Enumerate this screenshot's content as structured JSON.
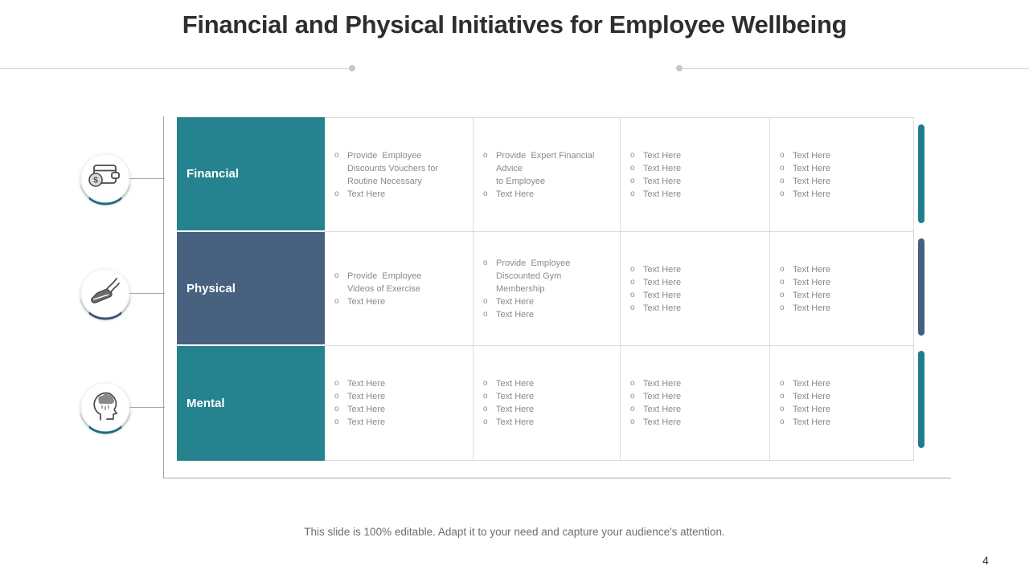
{
  "slide": {
    "title": "Financial and Physical Initiatives for Employee Wellbeing",
    "footer": "This slide is 100% editable. Adapt it to your need and capture your audience's attention.",
    "page_number": "4"
  },
  "colors": {
    "teal_header": "#24838F",
    "navy_header": "#48617F",
    "teal_bar": "#1F7E8C",
    "navy_bar": "#44607E"
  },
  "bullet_glyph": "o",
  "table": {
    "rows": [
      {
        "label": "Financial",
        "icon": "wallet-dollar-icon",
        "header_color": "#24838F",
        "accent_color": "#1F7E8C",
        "cells": [
          {
            "bullets": [
              [
                "Provide  Employee",
                "Discounts Vouchers for",
                "Routine Necessary"
              ],
              [
                "Text Here"
              ]
            ]
          },
          {
            "bullets": [
              [
                "Provide  Expert Financial",
                "Advice",
                "to Employee"
              ],
              [
                "Text Here"
              ]
            ]
          },
          {
            "bullets": [
              [
                "Text Here"
              ],
              [
                "Text Here"
              ],
              [
                "Text Here"
              ],
              [
                "Text Here"
              ]
            ]
          },
          {
            "bullets": [
              [
                "Text Here"
              ],
              [
                "Text Here"
              ],
              [
                "Text Here"
              ],
              [
                "Text Here"
              ]
            ]
          }
        ]
      },
      {
        "label": "Physical",
        "icon": "exercise-leg-icon",
        "header_color": "#48617F",
        "accent_color": "#44607E",
        "cells": [
          {
            "bullets": [
              [
                "Provide  Employee",
                "Videos of Exercise"
              ],
              [
                "Text Here"
              ]
            ]
          },
          {
            "bullets": [
              [
                "Provide  Employee",
                "Discounted Gym",
                "Membership"
              ],
              [
                "Text Here"
              ],
              [
                "Text Here"
              ]
            ]
          },
          {
            "bullets": [
              [
                "Text Here"
              ],
              [
                "Text Here"
              ],
              [
                "Text Here"
              ],
              [
                "Text Here"
              ]
            ]
          },
          {
            "bullets": [
              [
                "Text Here"
              ],
              [
                "Text Here"
              ],
              [
                "Text Here"
              ],
              [
                "Text Here"
              ]
            ]
          }
        ]
      },
      {
        "label": "Mental",
        "icon": "mental-health-icon",
        "header_color": "#24838F",
        "accent_color": "#1F7E8C",
        "cells": [
          {
            "bullets": [
              [
                "Text Here"
              ],
              [
                "Text Here"
              ],
              [
                "Text Here"
              ],
              [
                "Text Here"
              ]
            ]
          },
          {
            "bullets": [
              [
                "Text Here"
              ],
              [
                "Text Here"
              ],
              [
                "Text Here"
              ],
              [
                "Text Here"
              ]
            ]
          },
          {
            "bullets": [
              [
                "Text Here"
              ],
              [
                "Text Here"
              ],
              [
                "Text Here"
              ],
              [
                "Text Here"
              ]
            ]
          },
          {
            "bullets": [
              [
                "Text Here"
              ],
              [
                "Text Here"
              ],
              [
                "Text Here"
              ],
              [
                "Text Here"
              ]
            ]
          }
        ]
      }
    ]
  }
}
